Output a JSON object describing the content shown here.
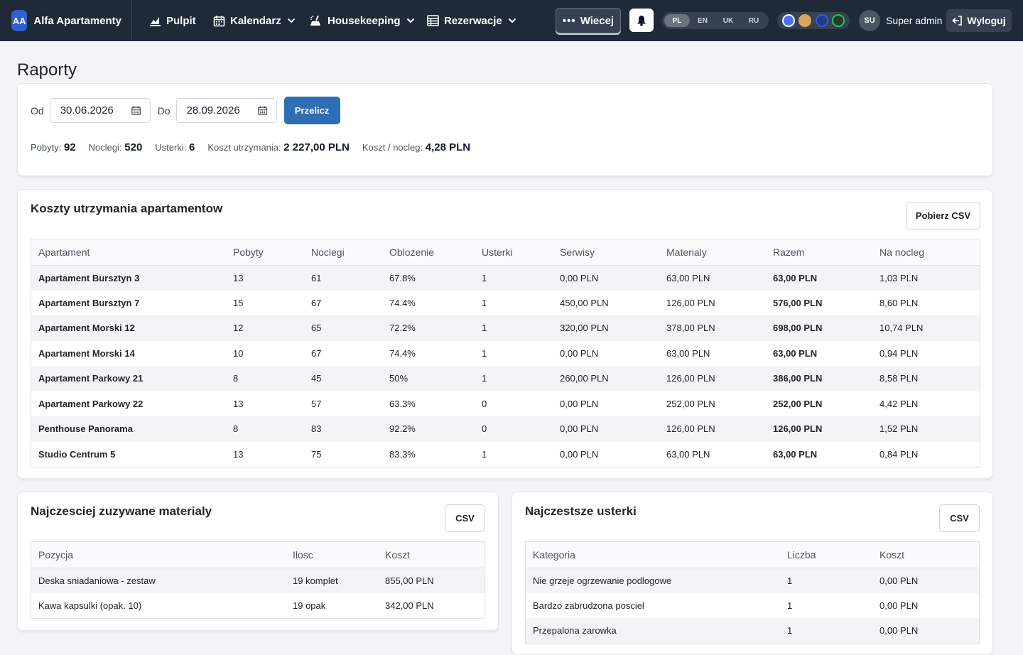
{
  "nav": {
    "brand_badge": "AA",
    "brand_name": "Alfa Apartamenty",
    "items": [
      {
        "label": "Pulpit"
      },
      {
        "label": "Kalendarz"
      },
      {
        "label": "Housekeeping"
      },
      {
        "label": "Rezerwacje"
      }
    ],
    "more_label": "Wiecej",
    "languages": [
      "PL",
      "EN",
      "UK",
      "RU"
    ],
    "active_language": "PL",
    "themes": [
      {
        "color": "#4f6ef7",
        "border": "#ffffff"
      },
      {
        "color": "#d9a45f",
        "border": "#d9a45f"
      },
      {
        "color": "#1e3a8a",
        "border": "#3b5bdb"
      },
      {
        "color": "#1f3b2b",
        "border": "#22c55e"
      }
    ],
    "user_initials": "SU",
    "user_name": "Super admin",
    "logout_label": "Wyloguj"
  },
  "page": {
    "title": "Raporty"
  },
  "filters": {
    "from_label": "Od",
    "from_value": "30.06.2026",
    "to_label": "Do",
    "to_value": "28.09.2026",
    "recalc_label": "Przelicz"
  },
  "stats": [
    {
      "label": "Pobyty:",
      "value": "92"
    },
    {
      "label": "Noclegi:",
      "value": "520"
    },
    {
      "label": "Usterki:",
      "value": "6"
    },
    {
      "label": "Koszt utrzymania:",
      "value": "2 227,00 PLN"
    },
    {
      "label": "Koszt / nocleg:",
      "value": "4,28 PLN"
    }
  ],
  "costs": {
    "title": "Koszty utrzymania apartamentow",
    "csv_label": "Pobierz CSV",
    "columns": [
      "Apartament",
      "Pobyty",
      "Noclegi",
      "Oblozenie",
      "Usterki",
      "Serwisy",
      "Materialy",
      "Razem",
      "Na nocleg"
    ],
    "rows": [
      [
        "Apartament Bursztyn 3",
        "13",
        "61",
        "67.8%",
        "1",
        "0,00 PLN",
        "63,00 PLN",
        "63,00 PLN",
        "1,03 PLN"
      ],
      [
        "Apartament Bursztyn 7",
        "15",
        "67",
        "74.4%",
        "1",
        "450,00 PLN",
        "126,00 PLN",
        "576,00 PLN",
        "8,60 PLN"
      ],
      [
        "Apartament Morski 12",
        "12",
        "65",
        "72.2%",
        "1",
        "320,00 PLN",
        "378,00 PLN",
        "698,00 PLN",
        "10,74 PLN"
      ],
      [
        "Apartament Morski 14",
        "10",
        "67",
        "74.4%",
        "1",
        "0,00 PLN",
        "63,00 PLN",
        "63,00 PLN",
        "0,94 PLN"
      ],
      [
        "Apartament Parkowy 21",
        "8",
        "45",
        "50%",
        "1",
        "260,00 PLN",
        "126,00 PLN",
        "386,00 PLN",
        "8,58 PLN"
      ],
      [
        "Apartament Parkowy 22",
        "13",
        "57",
        "63.3%",
        "0",
        "0,00 PLN",
        "252,00 PLN",
        "252,00 PLN",
        "4,42 PLN"
      ],
      [
        "Penthouse Panorama",
        "8",
        "83",
        "92.2%",
        "0",
        "0,00 PLN",
        "126,00 PLN",
        "126,00 PLN",
        "1,52 PLN"
      ],
      [
        "Studio Centrum 5",
        "13",
        "75",
        "83.3%",
        "1",
        "0,00 PLN",
        "63,00 PLN",
        "63,00 PLN",
        "0,84 PLN"
      ]
    ]
  },
  "materials": {
    "title": "Najczesciej zuzywane materialy",
    "csv_label": "CSV",
    "columns": [
      "Pozycja",
      "Ilosc",
      "Koszt"
    ],
    "rows": [
      [
        "Deska sniadaniowa - zestaw",
        "19 komplet",
        "855,00 PLN"
      ],
      [
        "Kawa kapsulki (opak. 10)",
        "19 opak",
        "342,00 PLN"
      ]
    ]
  },
  "defects": {
    "title": "Najczestsze usterki",
    "csv_label": "CSV",
    "columns": [
      "Kategoria",
      "Liczba",
      "Koszt"
    ],
    "rows": [
      [
        "Nie grzeje ogrzewanie podlogowe",
        "1",
        "0,00 PLN"
      ],
      [
        "Bardzo zabrudzona posciel",
        "1",
        "0,00 PLN"
      ],
      [
        "Przepalona zarowka",
        "1",
        "0,00 PLN"
      ]
    ]
  }
}
